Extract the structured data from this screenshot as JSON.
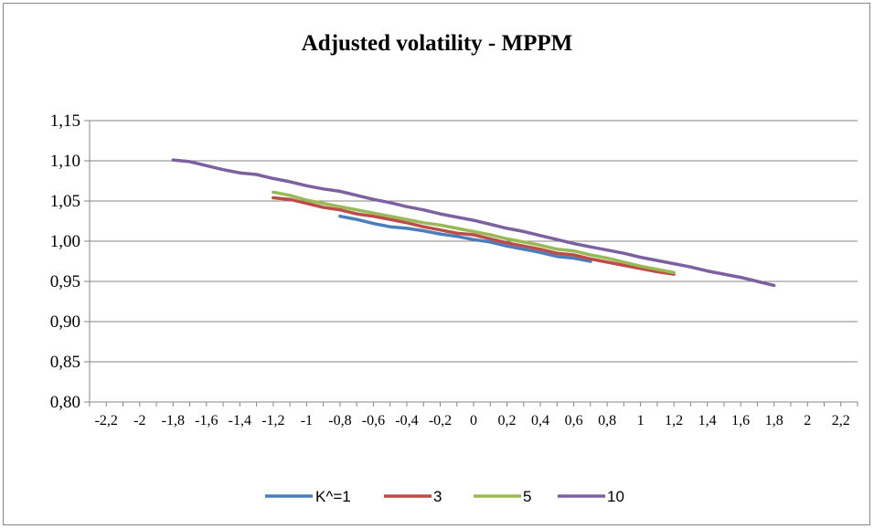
{
  "chart_data": {
    "type": "line",
    "title": "Adjusted volatility  - MPPM",
    "xlabel": "",
    "ylabel": "",
    "ylim": [
      0.8,
      1.15
    ],
    "y_ticks": [
      "0,80",
      "0,85",
      "0,90",
      "0,95",
      "1,00",
      "1,05",
      "1,10",
      "1,15"
    ],
    "xlim": [
      -2.3,
      2.3
    ],
    "x_tick_values": [
      -2.2,
      -2,
      -1.8,
      -1.6,
      -1.4,
      -1.2,
      -1,
      -0.8,
      -0.6,
      -0.4,
      -0.2,
      0,
      0.2,
      0.4,
      0.6,
      0.8,
      1,
      1.2,
      1.4,
      1.6,
      1.8,
      2,
      2.2
    ],
    "x_tick_labels": [
      "-2,2",
      "-2",
      "-1,8",
      "-1,6",
      "-1,4",
      "-1,2",
      "-1",
      "-0,8",
      "-0,6",
      "-0,4",
      "-0,2",
      "0",
      "0,2",
      "0,4",
      "0,6",
      "0,8",
      "1",
      "1,2",
      "1,4",
      "1,6",
      "1,8",
      "2",
      "2,2"
    ],
    "grid": true,
    "legend_position": "bottom",
    "series": [
      {
        "name": "K^=1",
        "color": "#4A7EBB",
        "x": [
          -0.8,
          -0.7,
          -0.6,
          -0.5,
          -0.4,
          -0.3,
          -0.2,
          -0.1,
          0.0,
          0.1,
          0.2,
          0.3,
          0.4,
          0.5,
          0.6,
          0.7
        ],
        "y": [
          1.031,
          1.027,
          1.022,
          1.018,
          1.016,
          1.013,
          1.009,
          1.006,
          1.002,
          0.999,
          0.994,
          0.99,
          0.986,
          0.981,
          0.979,
          0.975
        ]
      },
      {
        "name": "3",
        "color": "#BE4B48",
        "x": [
          -1.2,
          -1.1,
          -1.0,
          -0.9,
          -0.8,
          -0.7,
          -0.6,
          -0.5,
          -0.4,
          -0.3,
          -0.2,
          -0.1,
          0.0,
          0.1,
          0.2,
          0.3,
          0.4,
          0.5,
          0.6,
          0.7,
          0.8,
          0.9,
          1.0,
          1.1,
          1.2
        ],
        "y": [
          1.054,
          1.052,
          1.047,
          1.042,
          1.039,
          1.034,
          1.031,
          1.027,
          1.023,
          1.018,
          1.014,
          1.01,
          1.008,
          1.003,
          0.998,
          0.994,
          0.99,
          0.985,
          0.983,
          0.978,
          0.974,
          0.97,
          0.966,
          0.962,
          0.959
        ]
      },
      {
        "name": "5",
        "color": "#98B954",
        "x": [
          -1.2,
          -1.1,
          -1.0,
          -0.9,
          -0.8,
          -0.7,
          -0.6,
          -0.5,
          -0.4,
          -0.3,
          -0.2,
          -0.1,
          0.0,
          0.1,
          0.2,
          0.3,
          0.4,
          0.5,
          0.6,
          0.7,
          0.8,
          0.9,
          1.0,
          1.1,
          1.2
        ],
        "y": [
          1.061,
          1.057,
          1.051,
          1.047,
          1.043,
          1.039,
          1.035,
          1.031,
          1.027,
          1.023,
          1.02,
          1.016,
          1.012,
          1.008,
          1.003,
          0.999,
          0.995,
          0.99,
          0.988,
          0.983,
          0.979,
          0.974,
          0.969,
          0.965,
          0.961
        ]
      },
      {
        "name": "10",
        "color": "#7D60A0",
        "x": [
          -1.8,
          -1.7,
          -1.6,
          -1.5,
          -1.4,
          -1.3,
          -1.2,
          -1.1,
          -1.0,
          -0.9,
          -0.8,
          -0.7,
          -0.6,
          -0.5,
          -0.4,
          -0.3,
          -0.2,
          -0.1,
          0.0,
          0.1,
          0.2,
          0.3,
          0.4,
          0.5,
          0.6,
          0.7,
          0.8,
          0.9,
          1.0,
          1.1,
          1.2,
          1.3,
          1.4,
          1.5,
          1.6,
          1.7,
          1.8
        ],
        "y": [
          1.101,
          1.099,
          1.094,
          1.089,
          1.085,
          1.083,
          1.078,
          1.074,
          1.069,
          1.065,
          1.062,
          1.057,
          1.052,
          1.048,
          1.043,
          1.039,
          1.034,
          1.03,
          1.026,
          1.021,
          1.016,
          1.012,
          1.007,
          1.002,
          0.997,
          0.993,
          0.989,
          0.985,
          0.98,
          0.976,
          0.972,
          0.968,
          0.963,
          0.959,
          0.955,
          0.95,
          0.945
        ]
      }
    ]
  }
}
